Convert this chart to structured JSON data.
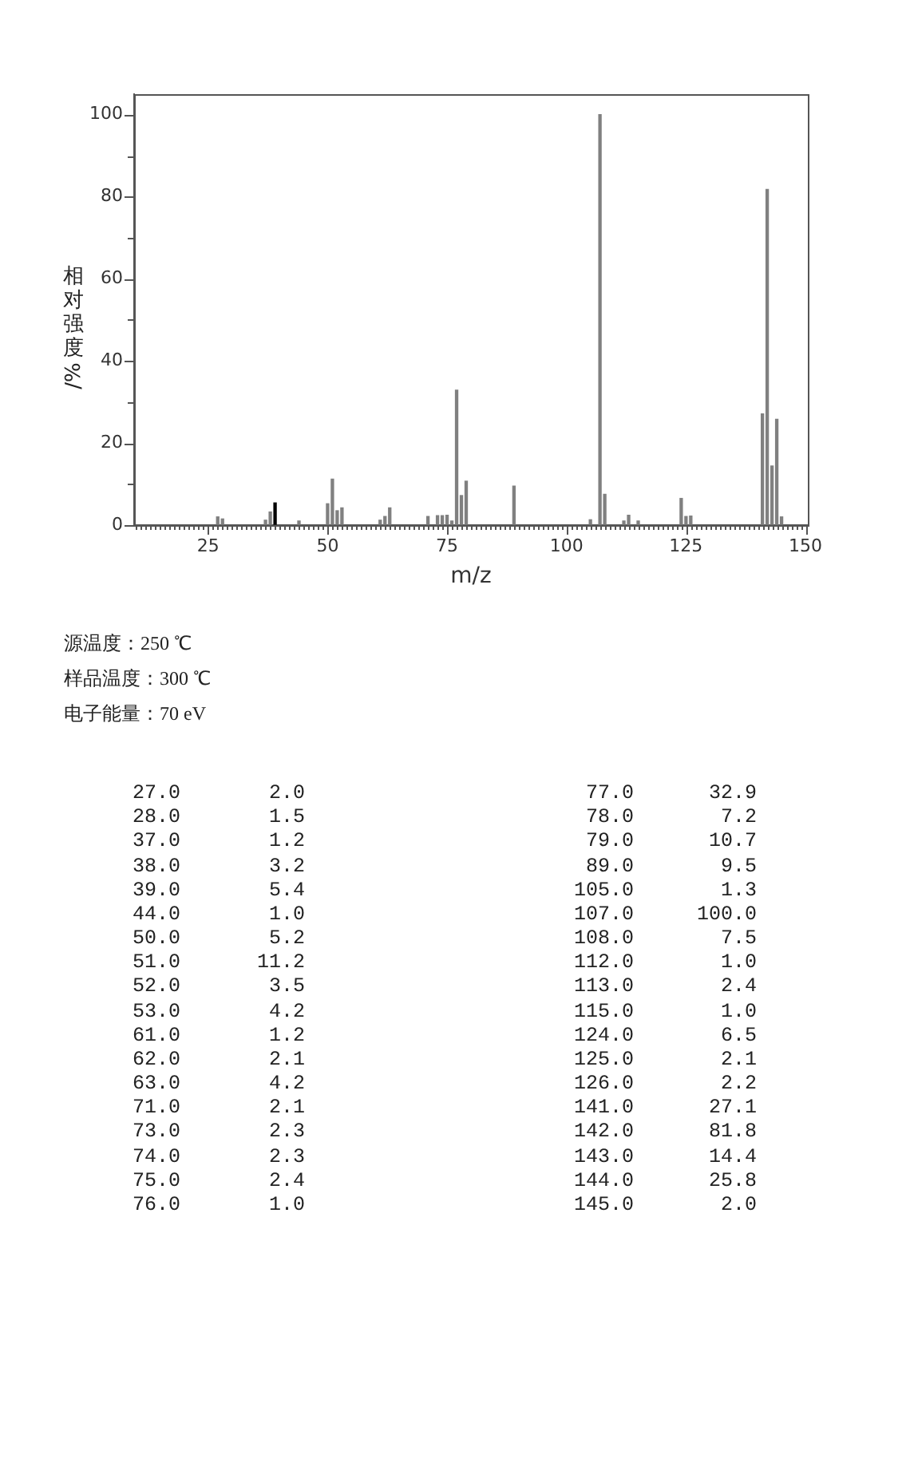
{
  "chart_data": [
    {
      "type": "bar",
      "xlabel": "m/z",
      "ylabel": "相对强度/%",
      "x": [
        27,
        28,
        37,
        38,
        39,
        44,
        50,
        51,
        52,
        53,
        61,
        62,
        63,
        71,
        73,
        74,
        75,
        76,
        77,
        78,
        79,
        89,
        105,
        107,
        108,
        112,
        113,
        115,
        124,
        125,
        126,
        141,
        142,
        143,
        144,
        145
      ],
      "values": [
        2.0,
        1.5,
        1.2,
        3.2,
        5.4,
        1.0,
        5.2,
        11.2,
        3.5,
        4.2,
        1.2,
        2.1,
        4.2,
        2.1,
        2.3,
        2.3,
        2.4,
        1.0,
        32.9,
        7.2,
        10.7,
        9.5,
        1.3,
        100.0,
        7.5,
        1.0,
        2.4,
        1.0,
        6.5,
        2.1,
        2.2,
        27.1,
        81.8,
        14.4,
        25.8,
        2.0
      ],
      "colors": [
        "#808080",
        "#808080",
        "#808080",
        "#808080",
        "#000000",
        "#808080",
        "#808080",
        "#808080",
        "#808080",
        "#808080",
        "#808080",
        "#808080",
        "#808080",
        "#808080",
        "#808080",
        "#808080",
        "#808080",
        "#808080",
        "#808080",
        "#808080",
        "#808080",
        "#808080",
        "#808080",
        "#808080",
        "#808080",
        "#808080",
        "#808080",
        "#808080",
        "#808080",
        "#808080",
        "#808080",
        "#808080",
        "#808080",
        "#808080",
        "#808080",
        "#808080"
      ],
      "xlim": [
        10,
        150
      ],
      "xticks": [
        {
          "value": 10,
          "label": null
        },
        {
          "value": 11,
          "label": null
        },
        {
          "value": 12,
          "label": null
        },
        {
          "value": 13,
          "label": null
        },
        {
          "value": 14,
          "label": null
        },
        {
          "value": 15,
          "label": null
        },
        {
          "value": 16,
          "label": null
        },
        {
          "value": 17,
          "label": null
        },
        {
          "value": 18,
          "label": null
        },
        {
          "value": 19,
          "label": null
        },
        {
          "value": 20,
          "label": null
        },
        {
          "value": 21,
          "label": null
        },
        {
          "value": 22,
          "label": null
        },
        {
          "value": 23,
          "label": null
        },
        {
          "value": 24,
          "label": null
        },
        25,
        {
          "value": 26,
          "label": null
        },
        {
          "value": 27,
          "label": null
        },
        {
          "value": 28,
          "label": null
        },
        {
          "value": 29,
          "label": null
        },
        {
          "value": 30,
          "label": null
        },
        {
          "value": 31,
          "label": null
        },
        {
          "value": 32,
          "label": null
        },
        {
          "value": 33,
          "label": null
        },
        {
          "value": 34,
          "label": null
        },
        {
          "value": 35,
          "label": null
        },
        {
          "value": 36,
          "label": null
        },
        {
          "value": 37,
          "label": null
        },
        {
          "value": 38,
          "label": null
        },
        {
          "value": 39,
          "label": null
        },
        {
          "value": 40,
          "label": null
        },
        {
          "value": 41,
          "label": null
        },
        {
          "value": 42,
          "label": null
        },
        {
          "value": 43,
          "label": null
        },
        {
          "value": 44,
          "label": null
        },
        {
          "value": 45,
          "label": null
        },
        {
          "value": 46,
          "label": null
        },
        {
          "value": 47,
          "label": null
        },
        {
          "value": 48,
          "label": null
        },
        {
          "value": 49,
          "label": null
        },
        50,
        {
          "value": 51,
          "label": null
        },
        {
          "value": 52,
          "label": null
        },
        {
          "value": 53,
          "label": null
        },
        {
          "value": 54,
          "label": null
        },
        {
          "value": 55,
          "label": null
        },
        {
          "value": 56,
          "label": null
        },
        {
          "value": 57,
          "label": null
        },
        {
          "value": 58,
          "label": null
        },
        {
          "value": 59,
          "label": null
        },
        {
          "value": 60,
          "label": null
        },
        {
          "value": 61,
          "label": null
        },
        {
          "value": 62,
          "label": null
        },
        {
          "value": 63,
          "label": null
        },
        {
          "value": 64,
          "label": null
        },
        {
          "value": 65,
          "label": null
        },
        {
          "value": 66,
          "label": null
        },
        {
          "value": 67,
          "label": null
        },
        {
          "value": 68,
          "label": null
        },
        {
          "value": 69,
          "label": null
        },
        {
          "value": 70,
          "label": null
        },
        {
          "value": 71,
          "label": null
        },
        {
          "value": 72,
          "label": null
        },
        {
          "value": 73,
          "label": null
        },
        {
          "value": 74,
          "label": null
        },
        75,
        {
          "value": 76,
          "label": null
        },
        {
          "value": 77,
          "label": null
        },
        {
          "value": 78,
          "label": null
        },
        {
          "value": 79,
          "label": null
        },
        {
          "value": 80,
          "label": null
        },
        {
          "value": 81,
          "label": null
        },
        {
          "value": 82,
          "label": null
        },
        {
          "value": 83,
          "label": null
        },
        {
          "value": 84,
          "label": null
        },
        {
          "value": 85,
          "label": null
        },
        {
          "value": 86,
          "label": null
        },
        {
          "value": 87,
          "label": null
        },
        {
          "value": 88,
          "label": null
        },
        {
          "value": 89,
          "label": null
        },
        {
          "value": 90,
          "label": null
        },
        {
          "value": 91,
          "label": null
        },
        {
          "value": 92,
          "label": null
        },
        {
          "value": 93,
          "label": null
        },
        {
          "value": 94,
          "label": null
        },
        {
          "value": 95,
          "label": null
        },
        {
          "value": 96,
          "label": null
        },
        {
          "value": 97,
          "label": null
        },
        {
          "value": 98,
          "label": null
        },
        {
          "value": 99,
          "label": null
        },
        100,
        {
          "value": 101,
          "label": null
        },
        {
          "value": 102,
          "label": null
        },
        {
          "value": 103,
          "label": null
        },
        {
          "value": 104,
          "label": null
        },
        {
          "value": 105,
          "label": null
        },
        {
          "value": 106,
          "label": null
        },
        {
          "value": 107,
          "label": null
        },
        {
          "value": 108,
          "label": null
        },
        {
          "value": 109,
          "label": null
        },
        {
          "value": 110,
          "label": null
        },
        {
          "value": 111,
          "label": null
        },
        {
          "value": 112,
          "label": null
        },
        {
          "value": 113,
          "label": null
        },
        {
          "value": 114,
          "label": null
        },
        {
          "value": 115,
          "label": null
        },
        {
          "value": 116,
          "label": null
        },
        {
          "value": 117,
          "label": null
        },
        {
          "value": 118,
          "label": null
        },
        {
          "value": 119,
          "label": null
        },
        {
          "value": 120,
          "label": null
        },
        {
          "value": 121,
          "label": null
        },
        {
          "value": 122,
          "label": null
        },
        {
          "value": 123,
          "label": null
        },
        {
          "value": 124,
          "label": null
        },
        125,
        {
          "value": 126,
          "label": null
        },
        {
          "value": 127,
          "label": null
        },
        {
          "value": 128,
          "label": null
        },
        {
          "value": 129,
          "label": null
        },
        {
          "value": 130,
          "label": null
        },
        {
          "value": 131,
          "label": null
        },
        {
          "value": 132,
          "label": null
        },
        {
          "value": 133,
          "label": null
        },
        {
          "value": 134,
          "label": null
        },
        {
          "value": 135,
          "label": null
        },
        {
          "value": 136,
          "label": null
        },
        {
          "value": 137,
          "label": null
        },
        {
          "value": 138,
          "label": null
        },
        {
          "value": 139,
          "label": null
        },
        {
          "value": 140,
          "label": null
        },
        {
          "value": 141,
          "label": null
        },
        {
          "value": 142,
          "label": null
        },
        {
          "value": 143,
          "label": null
        },
        {
          "value": 144,
          "label": null
        },
        {
          "value": 145,
          "label": null
        },
        {
          "value": 146,
          "label": null
        },
        {
          "value": 147,
          "label": null
        },
        {
          "value": 148,
          "label": null
        },
        {
          "value": 149,
          "label": null
        },
        150
      ],
      "ylim": [
        0,
        105
      ],
      "yticks": [
        0,
        {
          "value": 10,
          "label": null
        },
        20,
        {
          "value": 30,
          "label": null
        },
        40,
        {
          "value": 50,
          "label": null
        },
        60,
        {
          "value": 70,
          "label": null
        },
        80,
        {
          "value": 90,
          "label": null
        },
        100
      ],
      "annotations": [
        "源温度：250 ℃",
        "样品温度：300 ℃",
        "电子能量：70 eV"
      ]
    },
    {
      "type": "other",
      "annotations": [
        "27.0",
        "2.0",
        "28.0",
        "1.5",
        "37.0",
        "1.2",
        "38.0",
        "3.2",
        "39.0",
        "5.4",
        "44.0",
        "1.0",
        "50.0",
        "5.2",
        "51.0",
        "11.2",
        "52.0",
        "3.5",
        "53.0",
        "4.2",
        "61.0",
        "1.2",
        "62.0",
        "2.1",
        "63.0",
        "4.2",
        "71.0",
        "2.1",
        "73.0",
        "2.3",
        "74.0",
        "2.3",
        "75.0",
        "2.4",
        "76.0",
        "1.0",
        "77.0",
        "32.9",
        "78.0",
        "7.2",
        "79.0",
        "10.7",
        "89.0",
        "9.5",
        "105.0",
        "1.3",
        "107.0",
        "100.0",
        "108.0",
        "7.5",
        "112.0",
        "1.0",
        "113.0",
        "2.4",
        "115.0",
        "1.0",
        "124.0",
        "6.5",
        "125.0",
        "2.1",
        "126.0",
        "2.2",
        "141.0",
        "27.1",
        "142.0",
        "81.8",
        "143.0",
        "14.4",
        "144.0",
        "25.8",
        "145.0",
        "2.0"
      ]
    }
  ]
}
